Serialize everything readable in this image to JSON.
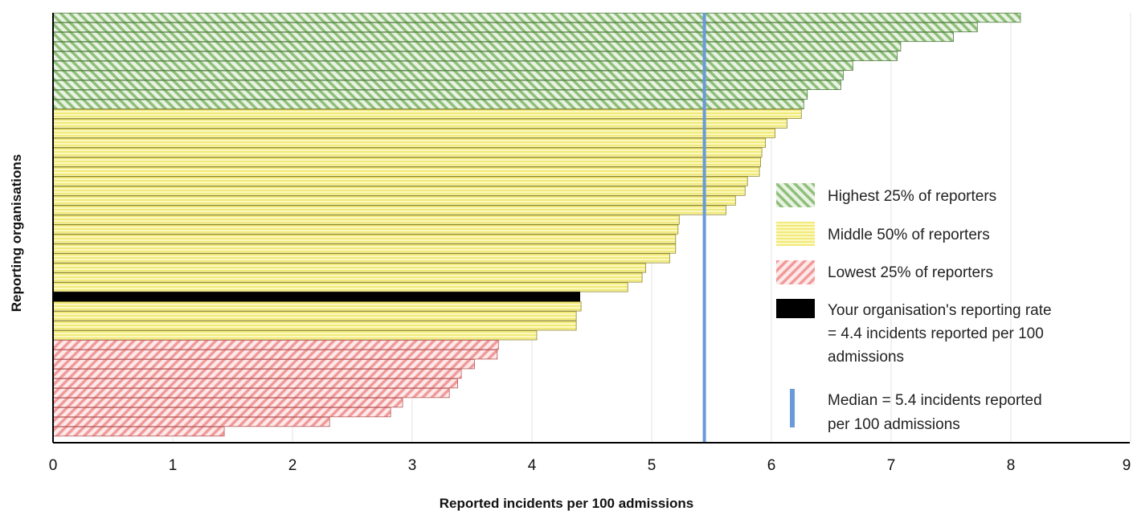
{
  "chart_data": {
    "type": "bar",
    "orientation": "horizontal",
    "xlabel": "Reported incidents per 100 admissions",
    "ylabel": "Reporting organisations",
    "xlim": [
      0,
      9
    ],
    "xticks": [
      0,
      1,
      2,
      3,
      4,
      5,
      6,
      7,
      8,
      9
    ],
    "grid": true,
    "legend_position": "right",
    "colors": {
      "highest": "#8fbf7a",
      "middle": "#f2ea78",
      "lowest": "#f19a9a",
      "yours": "#000000",
      "median": "#6a9ad8"
    },
    "groups": [
      {
        "key": "highest",
        "label": "Highest 25% of reporters",
        "values": [
          8.08,
          7.72,
          7.52,
          7.08,
          7.05,
          6.68,
          6.6,
          6.58,
          6.3,
          6.27
        ]
      },
      {
        "key": "middle",
        "label": "Middle 50% of reporters",
        "values": [
          6.25,
          6.13,
          6.03,
          5.95,
          5.92,
          5.91,
          5.9,
          5.8,
          5.78,
          5.7,
          5.62,
          5.23,
          5.22,
          5.2,
          5.2,
          5.15,
          4.95,
          4.92,
          4.8,
          4.41,
          4.37,
          4.37,
          4.04
        ]
      },
      {
        "key": "lowest",
        "label": "Lowest 25% of reporters",
        "values": [
          3.72,
          3.71,
          3.52,
          3.41,
          3.38,
          3.31,
          2.92,
          2.82,
          2.31,
          1.43
        ]
      }
    ],
    "your_organisation": {
      "value": 4.4,
      "position_after_index": 18,
      "label_line1": "Your organisation's reporting rate",
      "label_line2": "= 4.4 incidents reported per 100",
      "label_line3": "admissions"
    },
    "median": {
      "value": 5.44,
      "label_line1": "Median = 5.4 incidents reported",
      "label_line2": "per 100 admissions"
    }
  }
}
